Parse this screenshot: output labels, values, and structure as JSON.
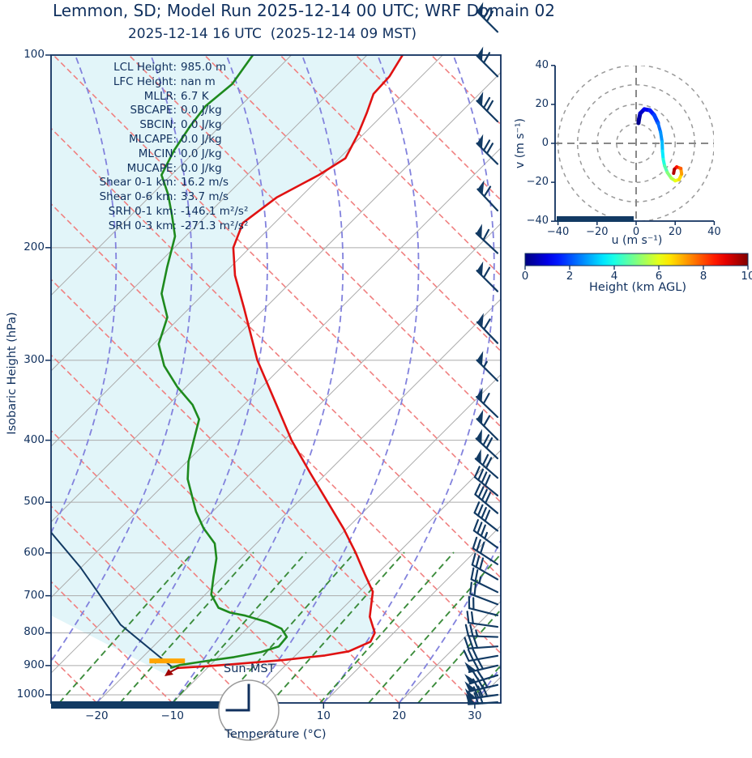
{
  "title": "Lemmon, SD; Model Run 2025-12-14 00 UTC; WRF Domain 02",
  "subtitle": "2025-12-14 16 UTC  (2025-12-14 09 MST)",
  "colors": {
    "text_navy": "#10305e",
    "barb_navy": "#123a63",
    "temperature_red": "#e01212",
    "dewpoint_green": "#1e8a1e",
    "dry_adiabat_salmon": "#f08080",
    "moist_adiabat_lavender": "#8282dd",
    "mixing_ratio_green": "#3c8c3c",
    "isotherm_gray": "#ababab",
    "shade_cyan": "#e2f5f9",
    "sun_bar_orange": "#ffa500",
    "surface_arrow_dark_red": "#a00000"
  },
  "skewt": {
    "ylabel": "Isobaric Height (hPa)",
    "xlabel": "Temperature (°C)",
    "yticks": [
      100,
      200,
      300,
      400,
      500,
      600,
      700,
      800,
      900,
      1000
    ],
    "xticks": [
      -20,
      -10,
      10,
      20,
      30
    ],
    "sun_label": "Sun-MST",
    "clock_time": "09:00",
    "stats": [
      {
        "label": "LCL Height:",
        "value": "985.0 m"
      },
      {
        "label": "LFC Height:",
        "value": "nan m"
      },
      {
        "label": "MLLR:",
        "value": "6.7 K"
      },
      {
        "label": "SBCAPE:",
        "value": "0.0 J/kg"
      },
      {
        "label": "SBCIN:",
        "value": "0.0 J/kg"
      },
      {
        "label": "MLCAPE:",
        "value": "0.0 J/kg"
      },
      {
        "label": "MLCIN:",
        "value": "0.0 J/kg"
      },
      {
        "label": "MUCAPE:",
        "value": "0.0 J/kg"
      },
      {
        "label": "Shear 0-1 km:",
        "value": "16.2 m/s"
      },
      {
        "label": "Shear 0-6 km:",
        "value": "33.7 m/s"
      },
      {
        "label": "SRH 0-1 km:",
        "value": "-146.1 m²/s²"
      },
      {
        "label": "SRH 0-3 km:",
        "value": "-271.3 m²/s²"
      }
    ]
  },
  "hodograph": {
    "xlabel": "u (m s⁻¹)",
    "ylabel": "v (m s⁻¹)",
    "xticks": [
      -40,
      -20,
      0,
      20,
      40
    ],
    "yticks": [
      -40,
      -20,
      0,
      20,
      40
    ],
    "rings": [
      10,
      20,
      30,
      40
    ]
  },
  "colorbar": {
    "label": "Height (km AGL)",
    "ticks": [
      0,
      2,
      4,
      6,
      8,
      10
    ],
    "min": 0,
    "max": 10,
    "colormap": "jet"
  },
  "chart_data": {
    "type": "skewt-sounding",
    "pressure_axis_hPa": {
      "min": 100,
      "max": 1030,
      "log_scale": true
    },
    "temperature_axis_C": {
      "min": -26,
      "max": 33
    },
    "temperature_profile": [
      [
        100,
        -65.3
      ],
      [
        108,
        -64.2
      ],
      [
        115,
        -64.0
      ],
      [
        123,
        -62.4
      ],
      [
        133,
        -60.7
      ],
      [
        145,
        -59.2
      ],
      [
        154,
        -60.5
      ],
      [
        167,
        -63.1
      ],
      [
        183,
        -64.2
      ],
      [
        200,
        -62.2
      ],
      [
        221,
        -58.3
      ],
      [
        249,
        -52.7
      ],
      [
        300,
        -44.1
      ],
      [
        350,
        -36.0
      ],
      [
        400,
        -29.0
      ],
      [
        450,
        -22.2
      ],
      [
        500,
        -16.0
      ],
      [
        550,
        -10.4
      ],
      [
        600,
        -5.6
      ],
      [
        650,
        -1.4
      ],
      [
        690,
        1.8
      ],
      [
        755,
        4.7
      ],
      [
        800,
        7.5
      ],
      [
        826,
        8.1
      ],
      [
        855,
        6.5
      ],
      [
        868,
        3.9
      ],
      [
        882,
        -0.9
      ],
      [
        895,
        -6.8
      ],
      [
        903,
        -10.7
      ],
      [
        908,
        -14.1
      ]
    ],
    "dewpoint_profile": [
      [
        100,
        -85.1
      ],
      [
        111,
        -84.0
      ],
      [
        120,
        -84.6
      ],
      [
        129,
        -84.0
      ],
      [
        141,
        -82.9
      ],
      [
        154,
        -81.3
      ],
      [
        165,
        -77.9
      ],
      [
        178,
        -74.6
      ],
      [
        192,
        -71.4
      ],
      [
        215,
        -68.3
      ],
      [
        236,
        -65.6
      ],
      [
        257,
        -61.7
      ],
      [
        283,
        -59.3
      ],
      [
        306,
        -55.7
      ],
      [
        330,
        -51.2
      ],
      [
        352,
        -46.8
      ],
      [
        371,
        -44.0
      ],
      [
        402,
        -41.8
      ],
      [
        432,
        -39.8
      ],
      [
        460,
        -37.6
      ],
      [
        492,
        -34.5
      ],
      [
        517,
        -32.2
      ],
      [
        549,
        -29.0
      ],
      [
        580,
        -25.5
      ],
      [
        612,
        -23.3
      ],
      [
        655,
        -21.2
      ],
      [
        697,
        -19.2
      ],
      [
        731,
        -16.5
      ],
      [
        744,
        -14.3
      ],
      [
        752,
        -11.9
      ],
      [
        770,
        -8.1
      ],
      [
        788,
        -5.4
      ],
      [
        812,
        -3.6
      ],
      [
        840,
        -3.4
      ],
      [
        857,
        -5.0
      ],
      [
        873,
        -7.9
      ],
      [
        885,
        -11.0
      ],
      [
        898,
        -14.0
      ],
      [
        908,
        -14.9
      ]
    ],
    "parcel_trace": [
      [
        908,
        -14.5
      ],
      [
        777,
        -27.2
      ],
      [
        632,
        -40.1
      ],
      [
        555,
        -48.9
      ]
    ],
    "sun_marker": {
      "pressure_hPa": 885,
      "T_start": -18.6,
      "T_end": -13.9
    },
    "wind_barbs": [
      [
        92,
        135,
        1,
        2,
        0
      ],
      [
        108,
        135,
        1,
        1,
        0
      ],
      [
        127,
        135,
        1,
        2,
        0
      ],
      [
        148,
        135,
        1,
        2,
        0
      ],
      [
        175,
        133,
        1,
        1,
        0
      ],
      [
        204,
        137,
        1,
        1,
        0
      ],
      [
        234,
        135,
        1,
        1,
        0
      ],
      [
        282,
        134,
        1,
        1,
        0
      ],
      [
        323,
        135,
        1,
        0,
        1
      ],
      [
        368,
        136,
        1,
        1,
        0
      ],
      [
        399,
        135,
        1,
        1,
        0
      ],
      [
        427,
        137,
        1,
        2,
        0
      ],
      [
        458,
        139,
        1,
        2,
        0
      ],
      [
        488,
        141,
        0,
        4,
        0
      ],
      [
        520,
        140,
        0,
        4,
        0
      ],
      [
        554,
        142,
        0,
        4,
        0
      ],
      [
        589,
        144,
        0,
        3,
        1
      ],
      [
        625,
        147,
        0,
        3,
        0
      ],
      [
        660,
        150,
        0,
        3,
        0
      ],
      [
        691,
        154,
        0,
        2,
        1
      ],
      [
        722,
        159,
        0,
        2,
        0
      ],
      [
        751,
        166,
        0,
        2,
        0
      ],
      [
        783,
        172,
        0,
        2,
        0
      ],
      [
        812,
        178,
        0,
        2,
        1
      ],
      [
        840,
        184,
        0,
        3,
        0
      ],
      [
        869,
        190,
        0,
        3,
        0
      ],
      [
        900,
        193,
        1,
        2,
        0
      ],
      [
        932,
        197,
        1,
        2,
        0
      ],
      [
        965,
        193,
        1,
        3,
        0
      ],
      [
        1000,
        188,
        1,
        3,
        0
      ],
      [
        1027,
        184,
        1,
        2,
        0
      ]
    ],
    "wind_barb_format": "[pressure_hPa, staff_direction_deg, flags50, fulls10, halfs5]",
    "hodograph_trace": [
      [
        1.2,
        10.4,
        0.0
      ],
      [
        1.5,
        12.5,
        0.2
      ],
      [
        2.1,
        15.4,
        0.5
      ],
      [
        4.2,
        17.5,
        0.9
      ],
      [
        7.0,
        17.0,
        1.3
      ],
      [
        9.2,
        14.6,
        1.7
      ],
      [
        11.2,
        10.4,
        2.1
      ],
      [
        12.5,
        5.8,
        2.5
      ],
      [
        13.3,
        0.8,
        2.9
      ],
      [
        13.5,
        -4.0,
        3.3
      ],
      [
        13.9,
        -8.2,
        3.8
      ],
      [
        14.6,
        -11.6,
        4.3
      ],
      [
        16.0,
        -15.0,
        4.8
      ],
      [
        18.0,
        -17.9,
        5.3
      ],
      [
        20.0,
        -19.2,
        5.8
      ],
      [
        22.0,
        -18.6,
        6.3
      ],
      [
        23.3,
        -15.8,
        6.9
      ],
      [
        22.9,
        -12.9,
        7.5
      ],
      [
        20.8,
        -12.1,
        8.2
      ],
      [
        19.6,
        -13.3,
        9.0
      ],
      [
        19.2,
        -15.4,
        10.0
      ]
    ],
    "hodograph_trace_format": "[u_ms, v_ms, height_km_AGL]"
  }
}
